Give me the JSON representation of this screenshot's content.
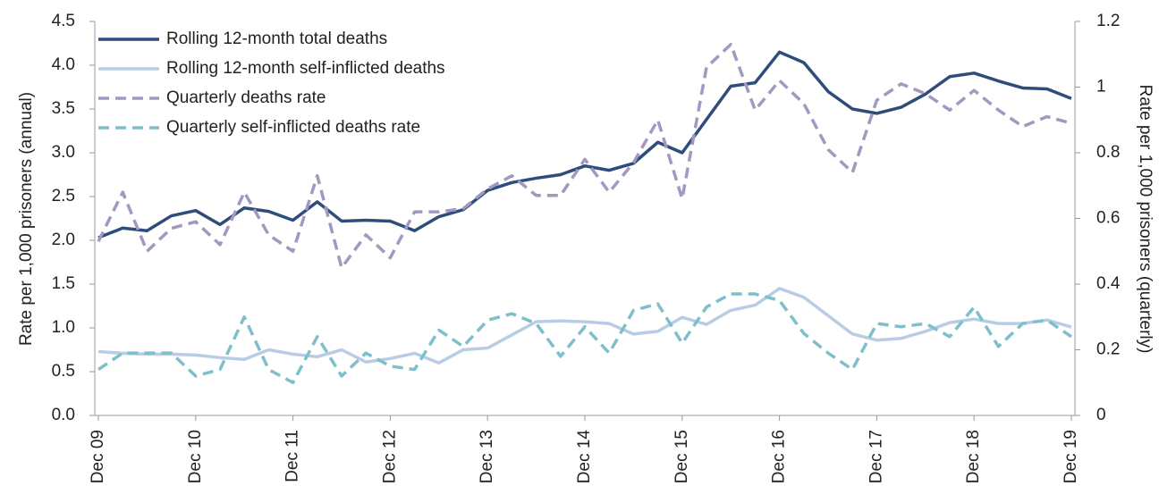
{
  "chart_data": {
    "type": "line",
    "x_categories": [
      "Dec 09",
      null,
      null,
      null,
      "Dec 10",
      null,
      null,
      null,
      "Dec 11",
      null,
      null,
      null,
      "Dec 12",
      null,
      null,
      null,
      "Dec 13",
      null,
      null,
      null,
      "Dec 14",
      null,
      null,
      null,
      "Dec 15",
      null,
      null,
      null,
      "Dec 16",
      null,
      null,
      null,
      "Dec 17",
      null,
      null,
      null,
      "Dec 18",
      null,
      null,
      null,
      "Dec 19"
    ],
    "ylabel": "Rate per 1,000 prisoners (annual)",
    "y2label": "Rate per 1,000 prisoners (quarterly)",
    "ylim": [
      0,
      4.5
    ],
    "yticks": [
      {
        "value": 0,
        "label": "0.0"
      },
      0.5,
      {
        "value": 1,
        "label": "1.0"
      },
      1.5,
      {
        "value": 2,
        "label": "2.0"
      },
      2.5,
      {
        "value": 3,
        "label": "3.0"
      },
      3.5,
      {
        "value": 4,
        "label": "4.0"
      },
      4.5
    ],
    "y2lim": [
      0,
      1.2
    ],
    "y2ticks": [
      0,
      0.2,
      0.4,
      0.6,
      0.8,
      1,
      1.2
    ],
    "legend": "upper left",
    "series": [
      {
        "name": "Rolling 12-month total deaths",
        "color": "#2e4d7b",
        "dashed": false,
        "values": [
          2.03,
          2.14,
          2.11,
          2.28,
          2.34,
          2.18,
          2.37,
          2.33,
          2.23,
          2.44,
          2.22,
          2.23,
          2.22,
          2.11,
          2.27,
          2.35,
          2.57,
          2.66,
          2.71,
          2.75,
          2.85,
          2.8,
          2.88,
          3.12,
          3.0,
          3.38,
          3.76,
          3.8,
          4.15,
          4.03,
          3.7,
          3.5,
          3.45,
          3.52,
          3.67,
          3.87,
          3.91,
          3.82,
          3.74,
          3.73,
          3.62
        ]
      },
      {
        "name": "Rolling 12-month self-inflicted deaths",
        "color": "#b8cde4",
        "dashed": false,
        "values": [
          0.73,
          0.71,
          0.7,
          0.7,
          0.69,
          0.66,
          0.64,
          0.75,
          0.7,
          0.67,
          0.75,
          0.61,
          0.65,
          0.71,
          0.6,
          0.75,
          0.77,
          0.92,
          1.07,
          1.08,
          1.07,
          1.05,
          0.93,
          0.96,
          1.12,
          1.04,
          1.2,
          1.26,
          1.45,
          1.35,
          1.14,
          0.93,
          0.86,
          0.88,
          0.96,
          1.06,
          1.1,
          1.05,
          1.05,
          1.09,
          1.01
        ]
      },
      {
        "name": "Quarterly deaths rate",
        "color": "#a399c0",
        "dashed": true,
        "axis": "y2",
        "values": [
          0.53,
          0.68,
          0.5,
          0.57,
          0.59,
          0.52,
          0.68,
          0.55,
          0.5,
          0.73,
          0.45,
          0.55,
          0.48,
          0.62,
          0.62,
          0.63,
          0.69,
          0.73,
          0.67,
          0.67,
          0.78,
          0.68,
          0.77,
          0.9,
          0.66,
          1.06,
          1.13,
          0.93,
          1.02,
          0.95,
          0.81,
          0.74,
          0.96,
          1.01,
          0.98,
          0.93,
          0.99,
          0.93,
          0.88,
          0.91,
          0.89
        ]
      },
      {
        "name": "Quarterly self-inflicted deaths rate",
        "color": "#7fbfcc",
        "dashed": true,
        "axis": "y2",
        "values": [
          0.14,
          0.19,
          0.19,
          0.19,
          0.12,
          0.14,
          0.3,
          0.14,
          0.1,
          0.24,
          0.12,
          0.19,
          0.15,
          0.14,
          0.26,
          0.21,
          0.29,
          0.31,
          0.28,
          0.18,
          0.27,
          0.19,
          0.32,
          0.34,
          0.22,
          0.33,
          0.37,
          0.37,
          0.35,
          0.25,
          0.19,
          0.14,
          0.28,
          0.27,
          0.28,
          0.24,
          0.33,
          0.21,
          0.28,
          0.29,
          0.24
        ]
      }
    ]
  }
}
